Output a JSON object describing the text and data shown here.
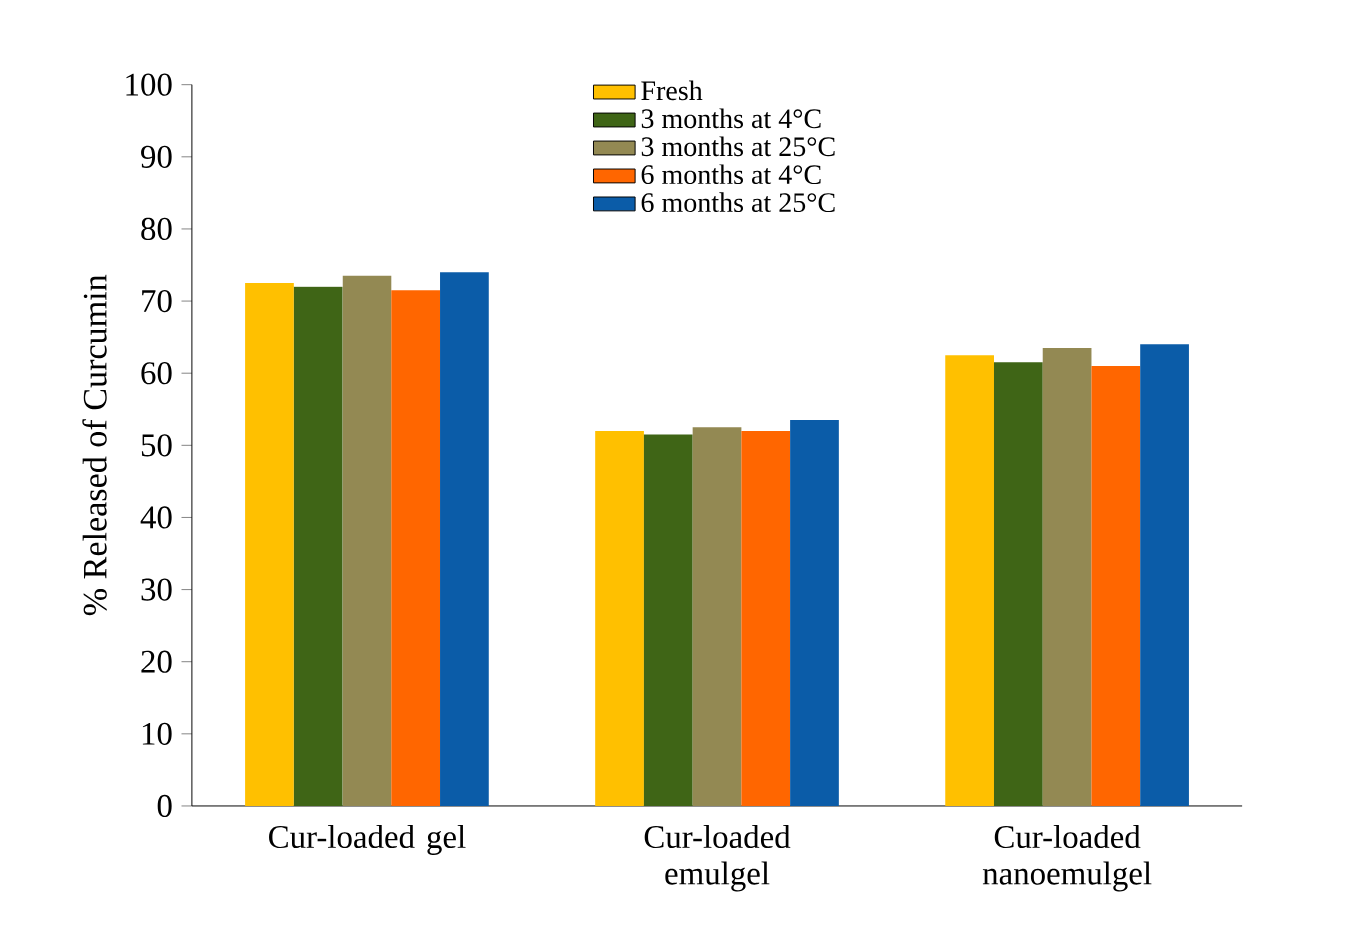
{
  "chart_data": {
    "type": "bar",
    "ylabel": "%  Released of Curcumin",
    "categories": [
      "Cur-loaded gel",
      "Cur-loaded emulgel",
      "Cur-loaded nanoemulgel"
    ],
    "series": [
      {
        "name": "Fresh",
        "color": "#ffc000",
        "values": [
          72.5,
          52,
          62.5
        ]
      },
      {
        "name": "3 months at 4°C",
        "color": "#3f6516",
        "values": [
          72,
          51.5,
          61.5
        ]
      },
      {
        "name": "3 months at 25°C",
        "color": "#938953",
        "values": [
          73.5,
          52.5,
          63.5
        ]
      },
      {
        "name": "6 months at 4°C",
        "color": "#ff6600",
        "values": [
          71.5,
          52,
          61
        ]
      },
      {
        "name": "6 months at 25°C",
        "color": "#0b5ca8",
        "values": [
          74,
          53.5,
          64
        ]
      }
    ],
    "ylim": [
      0,
      100
    ],
    "yticks": [
      0,
      10,
      20,
      30,
      40,
      50,
      60,
      70,
      80,
      90,
      100
    ],
    "grid": false,
    "legend": "top"
  }
}
